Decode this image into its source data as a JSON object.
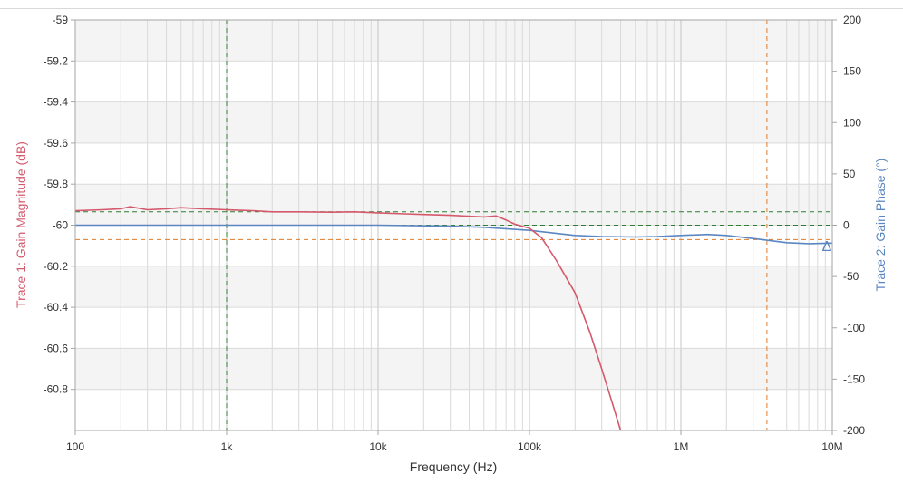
{
  "chart_data": {
    "type": "line",
    "xlabel": "Frequency (Hz)",
    "x_scale": "log",
    "xlim": [
      100,
      10000000
    ],
    "x_ticks": [
      {
        "value": 100,
        "label": "100"
      },
      {
        "value": 1000,
        "label": "1k"
      },
      {
        "value": 10000,
        "label": "10k"
      },
      {
        "value": 100000,
        "label": "100k"
      },
      {
        "value": 1000000,
        "label": "1M"
      },
      {
        "value": 10000000,
        "label": "10M"
      }
    ],
    "y_left": {
      "label": "Trace 1: Gain Magnitude (dB)",
      "lim": [
        -61.0,
        -59.0
      ],
      "ticks": [
        -59,
        -59.2,
        -59.4,
        -59.6,
        -59.8,
        -60,
        -60.2,
        -60.4,
        -60.6,
        -60.8
      ],
      "color": "#d4596b"
    },
    "y_right": {
      "label": "Trace 2: Gain Phase (°)",
      "lim": [
        -200,
        200
      ],
      "ticks": [
        200,
        150,
        100,
        50,
        0,
        -50,
        -100,
        -150,
        -200
      ],
      "color": "#5b86c1"
    },
    "grid": true,
    "series": [
      {
        "name": "Trace 1: Gain Magnitude (dB)",
        "axis": "left",
        "color": "#d4596b",
        "points": [
          [
            100,
            -59.93
          ],
          [
            150,
            -59.925
          ],
          [
            200,
            -59.92
          ],
          [
            230,
            -59.91
          ],
          [
            300,
            -59.925
          ],
          [
            400,
            -59.92
          ],
          [
            500,
            -59.915
          ],
          [
            700,
            -59.92
          ],
          [
            1000,
            -59.925
          ],
          [
            1500,
            -59.93
          ],
          [
            2000,
            -59.935
          ],
          [
            3000,
            -59.935
          ],
          [
            5000,
            -59.937
          ],
          [
            7000,
            -59.935
          ],
          [
            10000,
            -59.94
          ],
          [
            15000,
            -59.945
          ],
          [
            20000,
            -59.948
          ],
          [
            30000,
            -59.952
          ],
          [
            50000,
            -59.96
          ],
          [
            60000,
            -59.955
          ],
          [
            70000,
            -59.975
          ],
          [
            80000,
            -59.995
          ],
          [
            100000,
            -60.015
          ],
          [
            120000,
            -60.06
          ],
          [
            150000,
            -60.17
          ],
          [
            200000,
            -60.33
          ],
          [
            250000,
            -60.52
          ],
          [
            300000,
            -60.7
          ],
          [
            350000,
            -60.86
          ],
          [
            400000,
            -61.0
          ]
        ]
      },
      {
        "name": "Trace 2: Gain Phase (°)",
        "axis": "right",
        "color": "#5b86c1",
        "points": [
          [
            100,
            0
          ],
          [
            1000,
            0
          ],
          [
            10000,
            0
          ],
          [
            30000,
            -1
          ],
          [
            50000,
            -2
          ],
          [
            100000,
            -5
          ],
          [
            200000,
            -10
          ],
          [
            300000,
            -11
          ],
          [
            500000,
            -11.5
          ],
          [
            700000,
            -11
          ],
          [
            1000000,
            -10
          ],
          [
            1500000,
            -9
          ],
          [
            2000000,
            -10
          ],
          [
            3000000,
            -13
          ],
          [
            5000000,
            -17
          ],
          [
            7000000,
            -18
          ],
          [
            10000000,
            -17.5
          ]
        ]
      }
    ],
    "cursors": {
      "vertical": [
        {
          "x": 1000,
          "color": "#2e7d32"
        },
        {
          "x": 3700000,
          "color": "#e07b2a"
        }
      ],
      "horizontal": [
        {
          "axis": "left",
          "y": -59.935,
          "color": "#2e7d32"
        },
        {
          "axis": "left",
          "y": -60.0,
          "color": "#2e7d32"
        },
        {
          "axis": "left",
          "y": -60.07,
          "color": "#e07b2a"
        }
      ]
    },
    "marker": {
      "symbol": "Δ",
      "x": 10000000,
      "axis": "right",
      "y": -17,
      "color": "#5b86c1"
    }
  }
}
